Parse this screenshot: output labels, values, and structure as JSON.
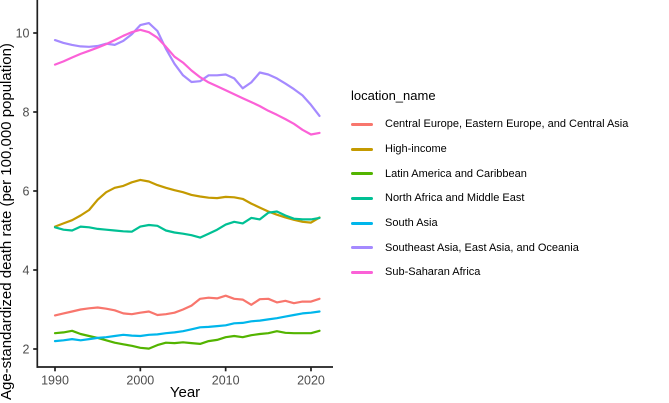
{
  "chart_data": {
    "type": "line",
    "title": "",
    "xlabel": "Year",
    "ylabel": "Age-standardized death rate (per 100,000 population)",
    "legend_title": "location_name",
    "legend_position": "right",
    "grid": false,
    "theme": "classic",
    "xlim": [
      1988,
      2023
    ],
    "ylim": [
      1.6,
      10.8
    ],
    "xticks": [
      1990,
      2000,
      2010,
      2020
    ],
    "yticks": [
      2,
      4,
      6,
      8,
      10
    ],
    "x": [
      1990,
      1991,
      1992,
      1993,
      1994,
      1995,
      1996,
      1997,
      1998,
      1999,
      2000,
      2001,
      2002,
      2003,
      2004,
      2005,
      2006,
      2007,
      2008,
      2009,
      2010,
      2011,
      2012,
      2013,
      2014,
      2015,
      2016,
      2017,
      2018,
      2019,
      2020,
      2021
    ],
    "series": [
      {
        "name": "Central Europe, Eastern Europe, and Central Asia",
        "color": "#F8766D",
        "values": [
          2.85,
          2.9,
          2.95,
          3.0,
          3.03,
          3.05,
          3.02,
          2.98,
          2.9,
          2.88,
          2.92,
          2.95,
          2.86,
          2.88,
          2.92,
          3.0,
          3.1,
          3.27,
          3.3,
          3.28,
          3.35,
          3.27,
          3.25,
          3.12,
          3.26,
          3.27,
          3.18,
          3.22,
          3.16,
          3.2,
          3.2,
          3.27
        ]
      },
      {
        "name": "High-income",
        "color": "#C49A00",
        "values": [
          5.1,
          5.18,
          5.26,
          5.38,
          5.52,
          5.78,
          5.97,
          6.08,
          6.13,
          6.22,
          6.28,
          6.24,
          6.15,
          6.08,
          6.02,
          5.97,
          5.9,
          5.86,
          5.83,
          5.82,
          5.85,
          5.84,
          5.8,
          5.68,
          5.58,
          5.48,
          5.4,
          5.33,
          5.27,
          5.22,
          5.2,
          5.33
        ]
      },
      {
        "name": "Latin America and Caribbean",
        "color": "#53B400",
        "values": [
          2.4,
          2.42,
          2.46,
          2.38,
          2.33,
          2.28,
          2.22,
          2.16,
          2.12,
          2.08,
          2.03,
          2.01,
          2.1,
          2.16,
          2.15,
          2.17,
          2.15,
          2.13,
          2.2,
          2.23,
          2.3,
          2.33,
          2.3,
          2.35,
          2.38,
          2.4,
          2.45,
          2.41,
          2.4,
          2.4,
          2.4,
          2.46
        ]
      },
      {
        "name": "North Africa and Middle East",
        "color": "#00C094",
        "values": [
          5.08,
          5.02,
          5.0,
          5.1,
          5.08,
          5.04,
          5.02,
          5.0,
          4.98,
          4.97,
          5.1,
          5.14,
          5.12,
          5.0,
          4.95,
          4.92,
          4.88,
          4.82,
          4.92,
          5.02,
          5.15,
          5.22,
          5.18,
          5.32,
          5.28,
          5.45,
          5.48,
          5.38,
          5.3,
          5.28,
          5.28,
          5.32
        ]
      },
      {
        "name": "South Asia",
        "color": "#00B6EB",
        "values": [
          2.2,
          2.22,
          2.25,
          2.22,
          2.25,
          2.28,
          2.3,
          2.33,
          2.36,
          2.34,
          2.33,
          2.36,
          2.37,
          2.4,
          2.42,
          2.45,
          2.5,
          2.55,
          2.56,
          2.58,
          2.6,
          2.65,
          2.66,
          2.7,
          2.72,
          2.75,
          2.78,
          2.82,
          2.86,
          2.9,
          2.92,
          2.95
        ]
      },
      {
        "name": "Southeast Asia, East Asia, and Oceania",
        "color": "#A58AFF",
        "values": [
          9.82,
          9.75,
          9.7,
          9.66,
          9.65,
          9.67,
          9.73,
          9.7,
          9.8,
          9.97,
          10.2,
          10.25,
          10.05,
          9.6,
          9.22,
          8.93,
          8.76,
          8.78,
          8.93,
          8.93,
          8.95,
          8.85,
          8.6,
          8.75,
          9.0,
          8.95,
          8.85,
          8.72,
          8.58,
          8.42,
          8.18,
          7.9
        ]
      },
      {
        "name": "Sub-Saharan Africa",
        "color": "#FB61D7",
        "values": [
          9.2,
          9.28,
          9.38,
          9.47,
          9.55,
          9.63,
          9.72,
          9.82,
          9.93,
          10.02,
          10.08,
          10.02,
          9.88,
          9.65,
          9.4,
          9.25,
          9.05,
          8.88,
          8.75,
          8.65,
          8.55,
          8.45,
          8.35,
          8.25,
          8.15,
          8.03,
          7.93,
          7.82,
          7.7,
          7.55,
          7.43,
          7.47
        ]
      }
    ]
  }
}
